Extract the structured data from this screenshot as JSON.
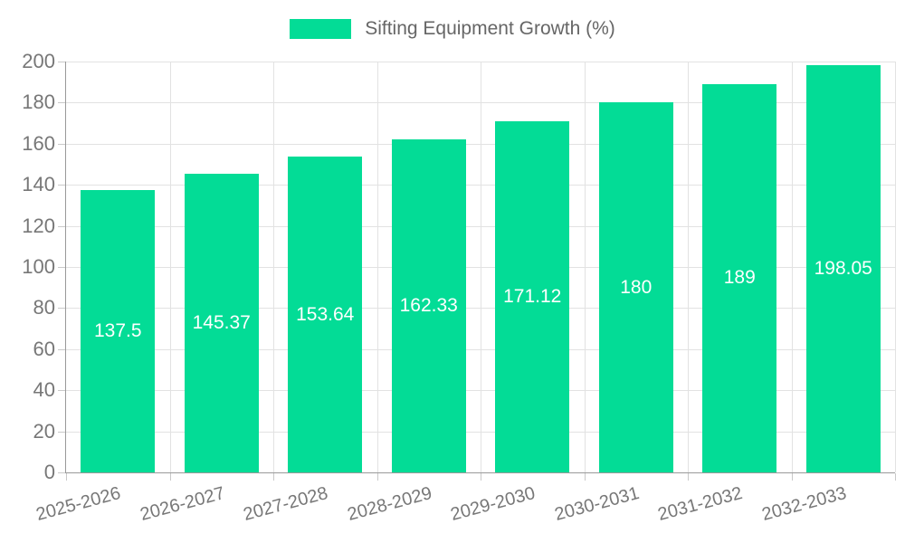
{
  "legend": {
    "label": "Sifting Equipment Growth (%)",
    "swatch_color": "#03DC96"
  },
  "chart_data": {
    "type": "bar",
    "title": "Sifting Equipment Growth (%)",
    "categories": [
      "2025-2026",
      "2026-2027",
      "2027-2028",
      "2028-2029",
      "2029-2030",
      "2030-2031",
      "2031-2032",
      "2032-2033"
    ],
    "values": [
      137.5,
      145.37,
      153.64,
      162.33,
      171.12,
      180,
      189,
      198.05
    ],
    "value_labels": [
      "137.5",
      "145.37",
      "153.64",
      "162.33",
      "171.12",
      "180",
      "189",
      "198.05"
    ],
    "series": [
      {
        "name": "Sifting Equipment Growth (%)",
        "values": [
          137.5,
          145.37,
          153.64,
          162.33,
          171.12,
          180,
          189,
          198.05
        ]
      }
    ],
    "xlabel": "",
    "ylabel": "",
    "ylim": [
      0,
      200
    ],
    "ytick_step": 20,
    "ytick_labels": [
      "0",
      "20",
      "40",
      "60",
      "80",
      "100",
      "120",
      "140",
      "160",
      "180",
      "200"
    ],
    "grid": true,
    "legend_position": "top-center",
    "bar_color": "#03DC96",
    "bar_value_text_color": "#ffffff",
    "axis_color": "#999999",
    "grid_color": "#e2e2e2",
    "tick_text_color": "#777777",
    "x_label_rotation_deg": -15
  }
}
